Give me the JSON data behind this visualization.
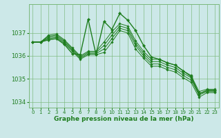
{
  "lines_background": [
    [
      1036.6,
      1036.6,
      1036.75,
      1036.8,
      1036.55,
      1036.2,
      1035.85,
      1036.05,
      1036.05,
      1036.15,
      1036.6,
      1037.1,
      1037.0,
      1036.3,
      1035.9,
      1035.55,
      1035.55,
      1035.4,
      1035.3,
      1035.05,
      1034.85,
      1034.2,
      1034.4,
      1034.4
    ],
    [
      1036.6,
      1036.6,
      1036.8,
      1036.85,
      1036.6,
      1036.25,
      1035.9,
      1036.1,
      1036.1,
      1036.3,
      1036.75,
      1037.2,
      1037.1,
      1036.45,
      1036.0,
      1035.65,
      1035.65,
      1035.5,
      1035.4,
      1035.15,
      1034.95,
      1034.3,
      1034.45,
      1034.45
    ],
    [
      1036.6,
      1036.6,
      1036.85,
      1036.9,
      1036.65,
      1036.3,
      1035.95,
      1036.15,
      1036.15,
      1036.45,
      1036.9,
      1037.3,
      1037.2,
      1036.55,
      1036.1,
      1035.75,
      1035.75,
      1035.6,
      1035.5,
      1035.25,
      1035.05,
      1034.35,
      1034.5,
      1034.5
    ],
    [
      1036.6,
      1036.6,
      1036.9,
      1036.95,
      1036.7,
      1036.35,
      1036.0,
      1036.2,
      1036.2,
      1036.6,
      1037.05,
      1037.4,
      1037.3,
      1036.65,
      1036.2,
      1035.85,
      1035.85,
      1035.7,
      1035.6,
      1035.35,
      1035.15,
      1034.45,
      1034.55,
      1034.55
    ]
  ],
  "line_main": [
    1036.6,
    1036.6,
    1036.7,
    1036.75,
    1036.5,
    1036.1,
    1036.05,
    1037.6,
    1036.05,
    1037.5,
    1037.15,
    1037.85,
    1037.55,
    1037.1,
    1036.45,
    1035.95,
    1035.85,
    1035.7,
    1035.6,
    1035.35,
    1035.1,
    1034.35,
    1034.5,
    1034.5
  ],
  "color": "#1e7d1e",
  "bg_color": "#cce8e8",
  "grid_color": "#7ab87a",
  "xlabel": "Graphe pression niveau de la mer (hPa)",
  "ylim": [
    1033.75,
    1038.25
  ],
  "yticks": [
    1034,
    1035,
    1036,
    1037
  ],
  "xticks": [
    0,
    1,
    2,
    3,
    4,
    5,
    6,
    7,
    8,
    9,
    10,
    11,
    12,
    13,
    14,
    15,
    16,
    17,
    18,
    19,
    20,
    21,
    22,
    23
  ]
}
